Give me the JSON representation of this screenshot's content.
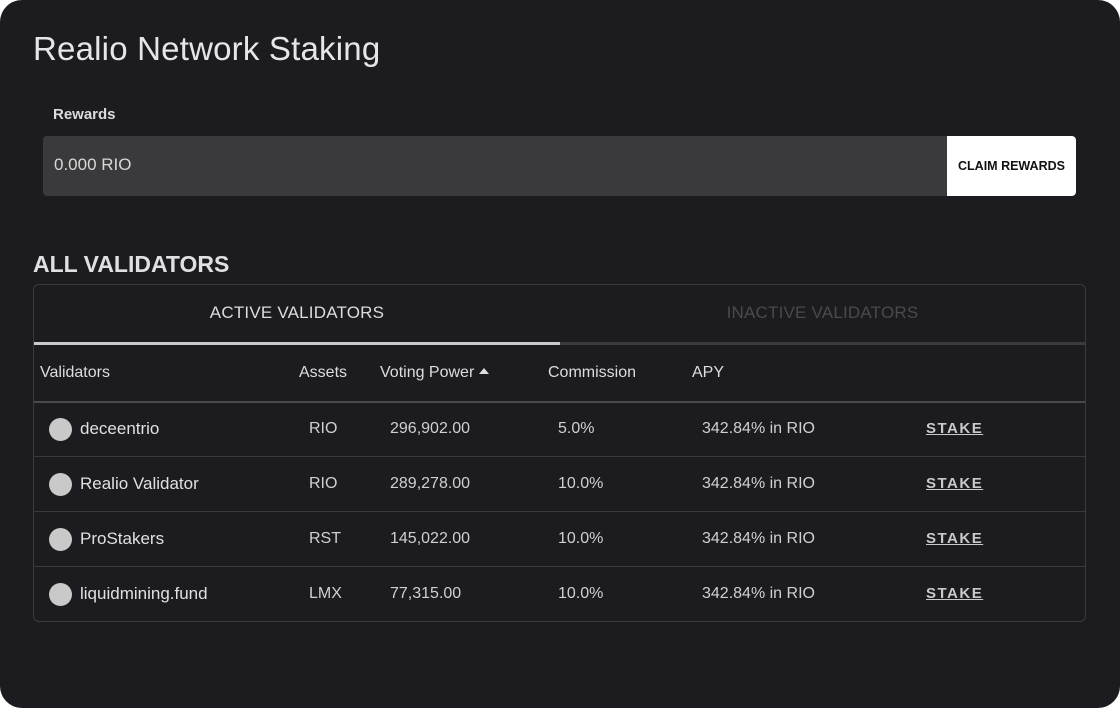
{
  "page": {
    "title": "Realio Network Staking"
  },
  "rewards": {
    "label": "Rewards",
    "value": "0.000 RIO",
    "claim_label": "CLAIM REWARDS"
  },
  "validators_section": {
    "title": "ALL VALIDATORS",
    "tabs": [
      {
        "label": "ACTIVE VALIDATORS",
        "active": true
      },
      {
        "label": "INACTIVE VALIDATORS",
        "active": false
      }
    ],
    "columns": [
      "Validators",
      "Assets",
      "Voting Power",
      "Commission",
      "APY"
    ],
    "sort": {
      "column": "Voting Power",
      "direction": "ascending",
      "icon": "triangle-up-icon"
    },
    "rows": [
      {
        "name": "deceentrio",
        "asset": "RIO",
        "voting_power": "296,902.00",
        "commission": "5.0%",
        "apy": "342.84% in RIO",
        "action": "STAKE"
      },
      {
        "name": "Realio Validator",
        "asset": "RIO",
        "voting_power": "289,278.00",
        "commission": "10.0%",
        "apy": "342.84% in RIO",
        "action": "STAKE"
      },
      {
        "name": "ProStakers",
        "asset": "RST",
        "voting_power": "145,022.00",
        "commission": "10.0%",
        "apy": "342.84% in RIO",
        "action": "STAKE"
      },
      {
        "name": "liquidmining.fund",
        "asset": "LMX",
        "voting_power": "77,315.00",
        "commission": "10.0%",
        "apy": "342.84% in RIO",
        "action": "STAKE"
      }
    ]
  },
  "colors": {
    "background": "#1c1b1f",
    "input_background": "#3a3a3c",
    "button_background": "#ffffff",
    "text_primary": "#e0e0e0",
    "tab_inactive_text": "#4a4a4e"
  }
}
